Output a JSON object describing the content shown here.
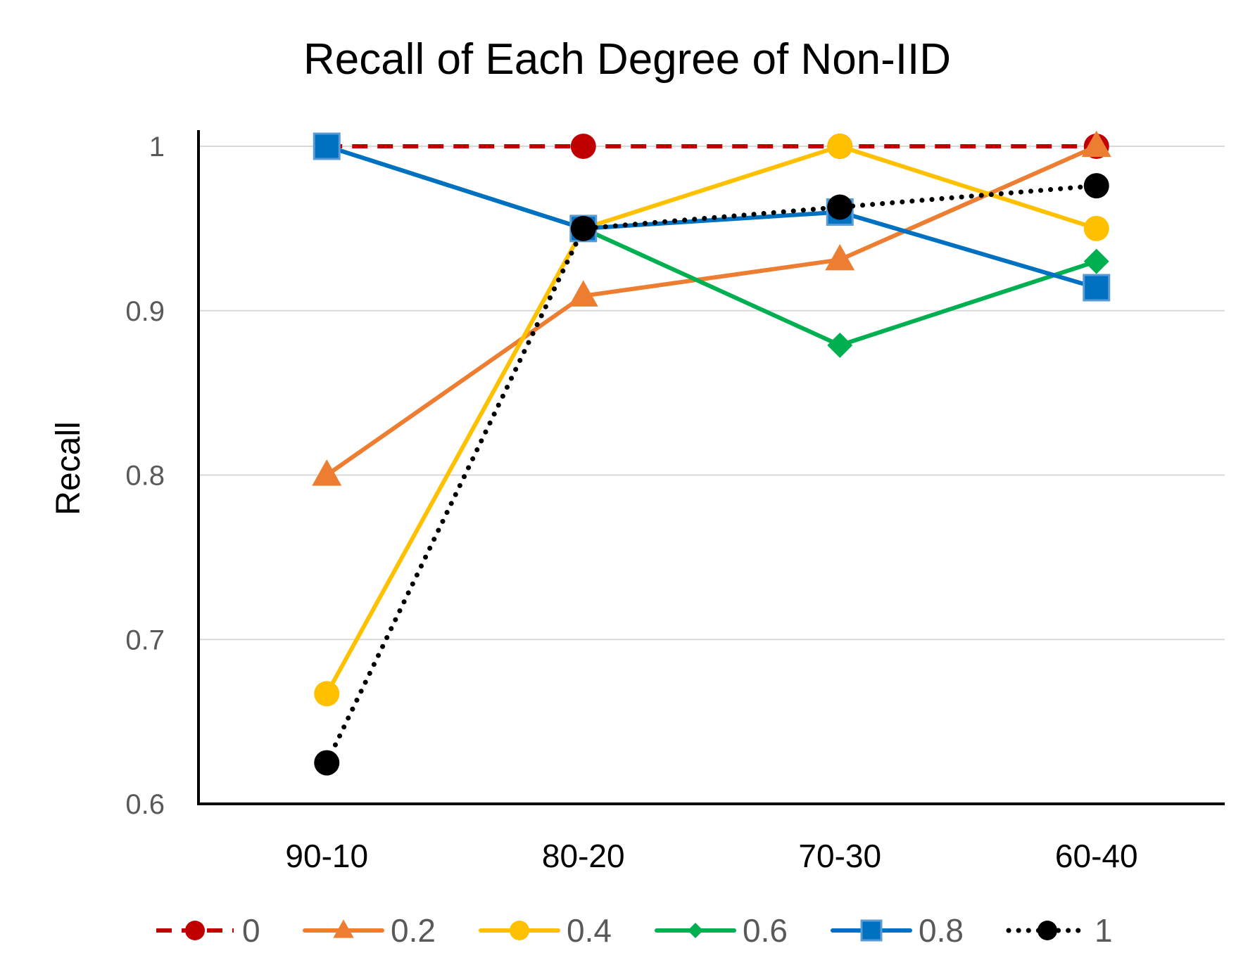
{
  "chart_data": {
    "type": "line",
    "title": "Recall of Each Degree of Non-IID",
    "xlabel": "",
    "ylabel": "Recall",
    "categories": [
      "90-10",
      "80-20",
      "70-30",
      "60-40"
    ],
    "ylim": [
      0.6,
      1.0
    ],
    "yticks": [
      "0.6",
      "0.7",
      "0.8",
      "0.9",
      "1"
    ],
    "ytick_values": [
      0.6,
      0.7,
      0.8,
      0.9,
      1.0
    ],
    "grid": true,
    "legend_position": "bottom",
    "series": [
      {
        "name": "0",
        "values": [
          1.0,
          1.0,
          1.0,
          1.0
        ],
        "color": "#C00000",
        "dash": "dashed",
        "marker": "circle"
      },
      {
        "name": "0.2",
        "values": [
          0.8,
          0.909,
          0.931,
          1.0
        ],
        "color": "#ED7D31",
        "dash": "solid",
        "marker": "triangle"
      },
      {
        "name": "0.4",
        "values": [
          0.667,
          0.95,
          1.0,
          0.95
        ],
        "color": "#FFC000",
        "dash": "solid",
        "marker": "circle"
      },
      {
        "name": "0.6",
        "values": [
          1.0,
          0.95,
          0.879,
          0.93
        ],
        "color": "#00B050",
        "dash": "solid",
        "marker": "diamond"
      },
      {
        "name": "0.8",
        "values": [
          1.0,
          0.95,
          0.96,
          0.914
        ],
        "color": "#0070C0",
        "dash": "solid",
        "marker": "square"
      },
      {
        "name": "1",
        "values": [
          0.625,
          0.95,
          0.963,
          0.976
        ],
        "color": "#000000",
        "dash": "dotted",
        "marker": "circle"
      }
    ]
  }
}
